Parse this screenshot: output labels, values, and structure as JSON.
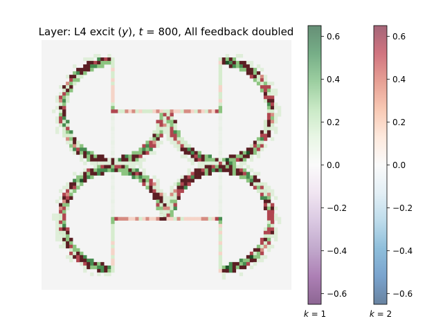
{
  "chart_data": {
    "type": "heatmap",
    "title": "Layer: L4 excit (y), t = 800, All feedback doubled",
    "title_parts": {
      "prefix": "Layer: L4 excit (",
      "var": "y",
      "mid": "), ",
      "t_var": "t",
      "t_eq": " = 800, All feedback doubled"
    },
    "grid_size": [
      72,
      72
    ],
    "image_background": "#f4f4f4",
    "value_range": [
      -0.65,
      0.65
    ],
    "shape": "four pac-man arcs arranged in a 2x2 pattern forming an illusory square",
    "colorbars": [
      {
        "id": "k1",
        "label_var": "k",
        "label_eq": " = 1",
        "label": "k = 1",
        "cmap": "PRGn",
        "alpha": 0.6,
        "ticks": [
          0.6,
          0.4,
          0.2,
          0.0,
          -0.2,
          -0.4,
          -0.6
        ],
        "tick_labels": [
          "0.6",
          "0.4",
          "0.2",
          "0.0",
          "−0.2",
          "−0.4",
          "−0.6"
        ]
      },
      {
        "id": "k2",
        "label_var": "k",
        "label_eq": " = 2",
        "label": "k = 2",
        "cmap": "RdBu_r",
        "alpha": 0.6,
        "ticks": [
          0.6,
          0.4,
          0.2,
          0.0,
          -0.2,
          -0.4,
          -0.6
        ],
        "tick_labels": [
          "0.6",
          "0.4",
          "0.2",
          "0.0",
          "−0.2",
          "−0.4",
          "−0.6"
        ]
      }
    ],
    "inducers": [
      {
        "cx": 20.5,
        "cy": 20.5,
        "r": 14.5,
        "gap_start_deg": 0,
        "gap_end_deg": 90
      },
      {
        "cx": 51.5,
        "cy": 20.5,
        "r": 14.5,
        "gap_start_deg": 90,
        "gap_end_deg": 180
      },
      {
        "cx": 20.5,
        "cy": 51.5,
        "r": 14.5,
        "gap_start_deg": 270,
        "gap_end_deg": 360
      },
      {
        "cx": 51.5,
        "cy": 51.5,
        "r": 14.5,
        "gap_start_deg": 180,
        "gap_end_deg": 270
      }
    ]
  }
}
